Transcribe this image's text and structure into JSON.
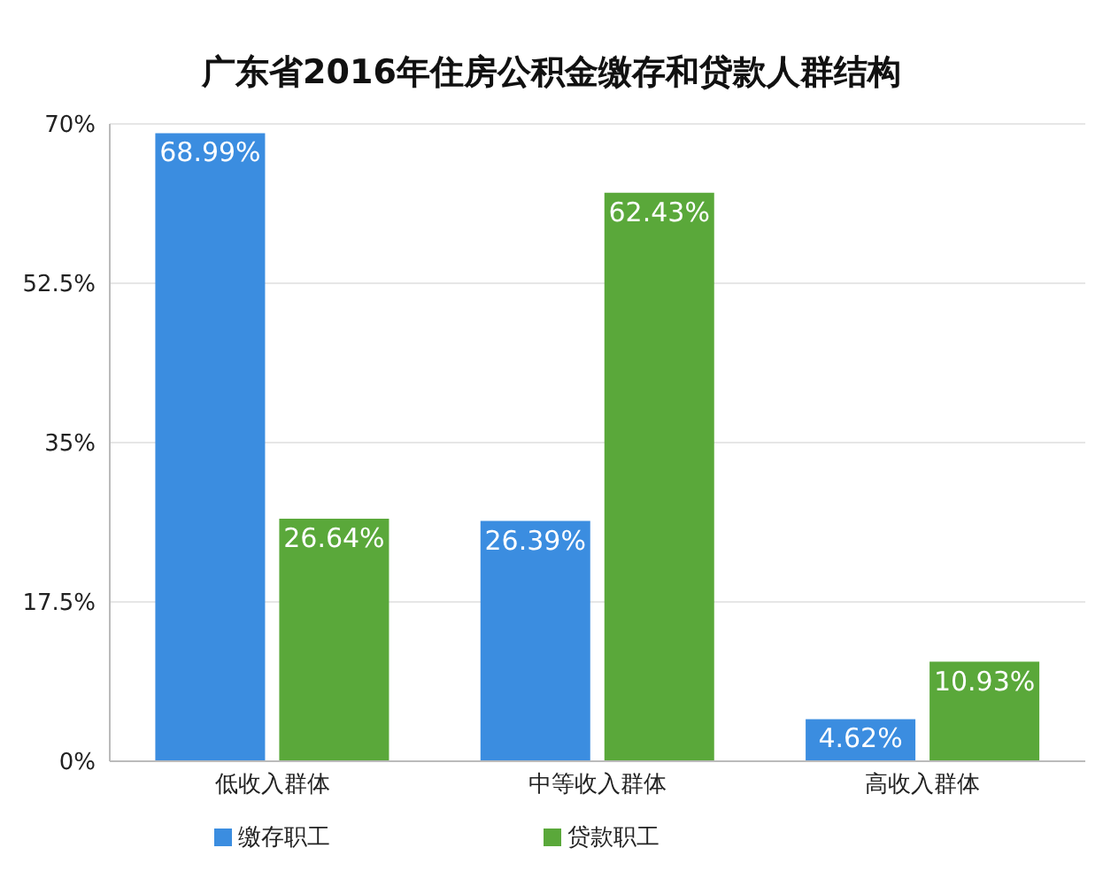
{
  "chart_data": {
    "type": "bar",
    "title": "广东省2016年住房公积金缴存和贷款人群结构",
    "categories": [
      "低收入群体",
      "中等收入群体",
      "高收入群体"
    ],
    "series": [
      {
        "name": "缴存职工",
        "color": "#3b8de0",
        "values": [
          68.99,
          26.39,
          4.62
        ],
        "value_labels": [
          "68.99%",
          "26.39%",
          "4.62%"
        ]
      },
      {
        "name": "贷款职工",
        "color": "#5aa83a",
        "values": [
          26.64,
          62.43,
          10.93
        ],
        "value_labels": [
          "26.64%",
          "62.43%",
          "10.93%"
        ]
      }
    ],
    "ylim": [
      0,
      70
    ],
    "yticks": [
      {
        "value": 0,
        "label": "0%"
      },
      {
        "value": 17.5,
        "label": "17.5%"
      },
      {
        "value": 35,
        "label": "35%"
      },
      {
        "value": 52.5,
        "label": "52.5%"
      },
      {
        "value": 70,
        "label": "70%"
      }
    ],
    "grid": "y",
    "legend": "bottom"
  }
}
